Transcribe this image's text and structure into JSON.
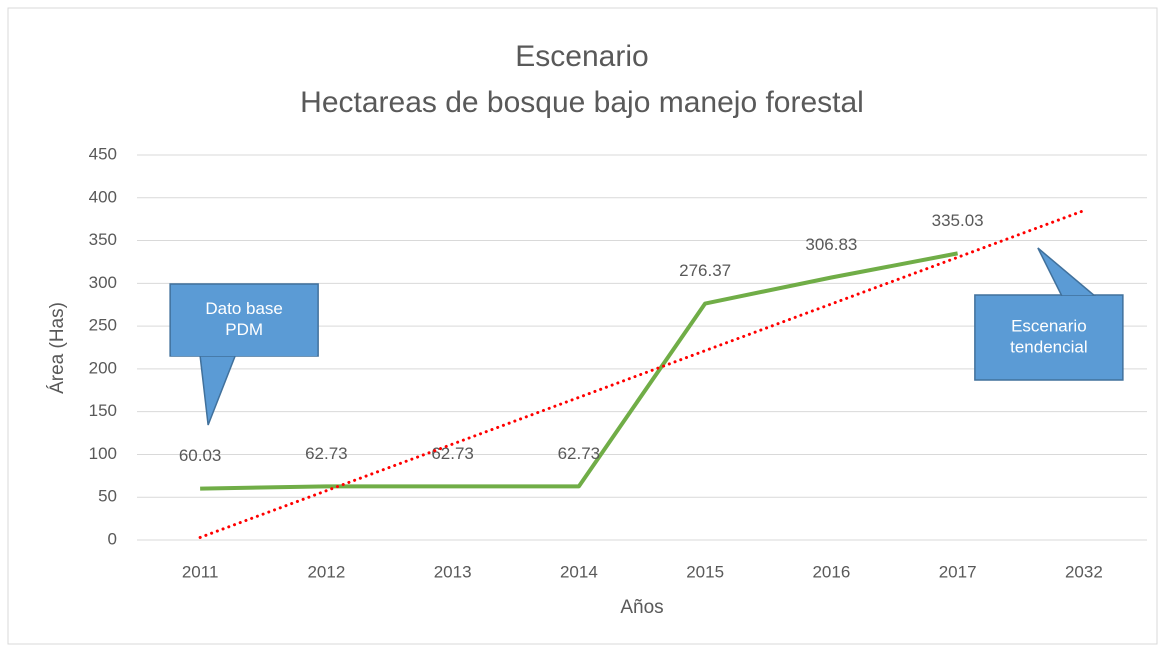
{
  "chart_data": {
    "type": "line",
    "title": "Escenario",
    "subtitle": "Hectareas de bosque bajo manejo forestal",
    "x_label": "Años",
    "y_label": "Área (Has)",
    "categories": [
      "2011",
      "2012",
      "2013",
      "2014",
      "2015",
      "2016",
      "2017",
      "2032"
    ],
    "series": [
      {
        "color": "#70ad47",
        "style": "solid",
        "data_labels": true,
        "values": [
          60.03,
          62.73,
          62.73,
          62.73,
          276.37,
          306.83,
          335.03,
          null
        ]
      },
      {
        "color": "#ff0000",
        "style": "dotted",
        "data_labels": false,
        "values": [
          3,
          57.6,
          112.1,
          166.7,
          221.3,
          275.9,
          330.4,
          385
        ]
      }
    ],
    "ylim": [
      0,
      450
    ],
    "yticks": [
      0,
      50,
      100,
      150,
      200,
      250,
      300,
      350,
      400,
      450
    ],
    "grid": true,
    "annotations": [
      {
        "lines": [
          "Dato base",
          "PDM"
        ],
        "category_index": 0,
        "pointer": "down"
      },
      {
        "lines": [
          "Escenario",
          "tendencial"
        ],
        "category_index": 7,
        "pointer": "up"
      }
    ]
  }
}
